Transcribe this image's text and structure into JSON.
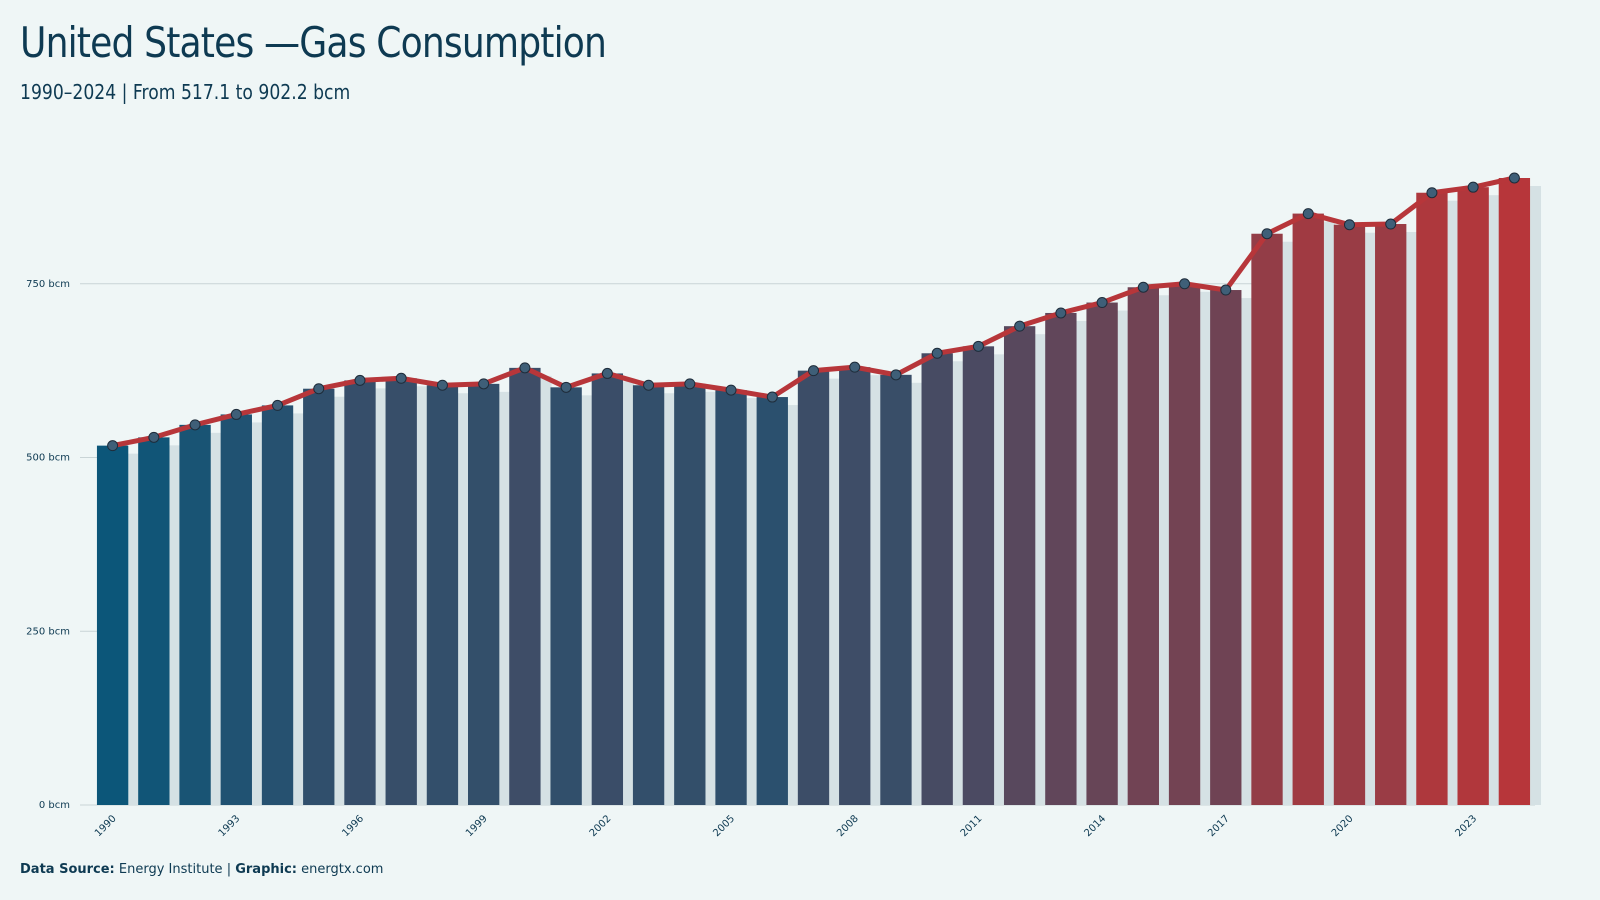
{
  "header": {
    "title": "United States —Gas Consumption",
    "subtitle": "1990–2024 | From 517.1 to 902.2 bcm"
  },
  "footer": {
    "source_label": "Data Source:",
    "source_value": "Energy Institute",
    "separator": "|",
    "graphic_label": "Graphic:",
    "graphic_value": "energtx.com"
  },
  "colors": {
    "low": "#0c5679",
    "high": "#b7363a",
    "line": "#b7363a",
    "marker_fill": "#3f5f78",
    "grid": "#c9d4d6",
    "background": "#eff6f6"
  },
  "chart_data": {
    "type": "bar",
    "title": "United States —Gas Consumption",
    "subtitle": "1990–2024 | From 517.1 to 902.2 bcm",
    "unit": "bcm",
    "x": [
      1990,
      1991,
      1992,
      1993,
      1994,
      1995,
      1996,
      1997,
      1998,
      1999,
      2000,
      2001,
      2002,
      2003,
      2004,
      2005,
      2006,
      2007,
      2008,
      2009,
      2010,
      2011,
      2012,
      2013,
      2014,
      2015,
      2016,
      2017,
      2018,
      2019,
      2020,
      2021,
      2022,
      2023,
      2024
    ],
    "values": [
      517.1,
      529,
      547,
      562,
      575,
      599,
      611,
      614,
      604,
      606,
      629,
      601,
      621,
      604,
      606,
      597,
      587,
      625,
      630,
      619,
      650,
      660,
      689,
      708,
      723,
      745,
      750,
      741,
      822,
      851,
      835,
      836,
      881,
      889,
      902.2
    ],
    "x_tick_labels": [
      "1990",
      "1993",
      "1996",
      "1999",
      "2002",
      "2005",
      "2008",
      "2011",
      "2014",
      "2017",
      "2020",
      "2023"
    ],
    "y_ticks": [
      0,
      250,
      500,
      750
    ],
    "y_tick_labels": [
      "0 bcm",
      "250 bcm",
      "500 bcm",
      "750 bcm"
    ],
    "ylim": [
      0,
      902.2
    ],
    "grid": true,
    "overlay": "line with circle markers",
    "legend": "none"
  }
}
